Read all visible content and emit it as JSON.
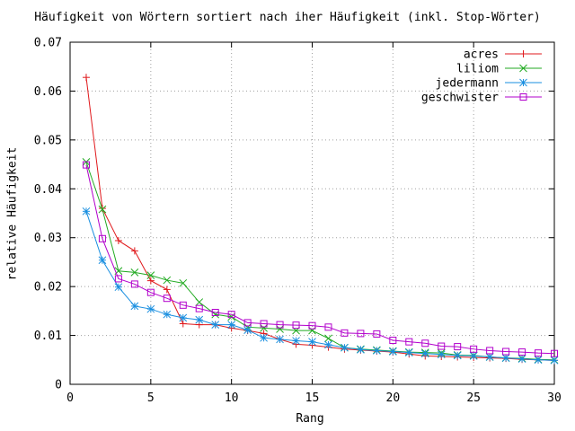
{
  "chart_data": {
    "type": "line",
    "title": "Häufigkeit von Wörtern sortiert nach iher Häufigkeit (inkl. Stop-Wörter)",
    "xlabel": "Rang",
    "ylabel": "relative Häufigkeit",
    "xlim": [
      0,
      30
    ],
    "ylim": [
      0,
      0.07
    ],
    "x_ticks": [
      "0",
      "5",
      "10",
      "15",
      "20",
      "25",
      "30"
    ],
    "y_ticks": [
      "0",
      "0.01",
      "0.02",
      "0.03",
      "0.04",
      "0.05",
      "0.06",
      "0.07"
    ],
    "grid": true,
    "legend_position": "top-right",
    "x": [
      1,
      2,
      3,
      4,
      5,
      6,
      7,
      8,
      9,
      10,
      11,
      12,
      13,
      14,
      15,
      16,
      17,
      18,
      19,
      20,
      21,
      22,
      23,
      24,
      25,
      26,
      27,
      28,
      29,
      30
    ],
    "series": [
      {
        "name": "acres",
        "color": "#e0191c",
        "marker": "plus",
        "values": [
          0.0628,
          0.036,
          0.0294,
          0.0273,
          0.0212,
          0.0194,
          0.0124,
          0.0122,
          0.0122,
          0.0115,
          0.011,
          0.0104,
          0.0092,
          0.0082,
          0.008,
          0.0076,
          0.0072,
          0.007,
          0.0068,
          0.0066,
          0.0062,
          0.0058,
          0.0057,
          0.0056,
          0.0055,
          0.0054,
          0.0053,
          0.0051,
          0.005,
          0.0049
        ]
      },
      {
        "name": "liliom",
        "color": "#22aa22",
        "marker": "cross",
        "values": [
          0.0455,
          0.0358,
          0.0232,
          0.0229,
          0.0223,
          0.0213,
          0.0207,
          0.0168,
          0.0143,
          0.0138,
          0.0117,
          0.0115,
          0.0113,
          0.011,
          0.011,
          0.0094,
          0.0075,
          0.0072,
          0.007,
          0.0068,
          0.0066,
          0.0065,
          0.0064,
          0.006,
          0.0059,
          0.0056,
          0.0054,
          0.0053,
          0.0051,
          0.005
        ]
      },
      {
        "name": "jedermann",
        "color": "#1a8fe0",
        "marker": "star",
        "values": [
          0.0354,
          0.0254,
          0.0199,
          0.016,
          0.0154,
          0.0143,
          0.0136,
          0.0132,
          0.0122,
          0.0122,
          0.0111,
          0.0095,
          0.0092,
          0.0089,
          0.0087,
          0.0081,
          0.0075,
          0.0071,
          0.0069,
          0.0067,
          0.0065,
          0.0063,
          0.0061,
          0.0059,
          0.0058,
          0.0056,
          0.0054,
          0.0052,
          0.005,
          0.0049
        ]
      },
      {
        "name": "geschwister",
        "color": "#b200cc",
        "marker": "square",
        "values": [
          0.0449,
          0.0298,
          0.0216,
          0.0205,
          0.0188,
          0.0176,
          0.0162,
          0.0155,
          0.0147,
          0.0143,
          0.0126,
          0.0124,
          0.0122,
          0.0121,
          0.012,
          0.0117,
          0.0105,
          0.0104,
          0.0103,
          0.009,
          0.0087,
          0.0084,
          0.0078,
          0.0077,
          0.0072,
          0.0069,
          0.0067,
          0.0066,
          0.0064,
          0.0063
        ]
      }
    ]
  }
}
